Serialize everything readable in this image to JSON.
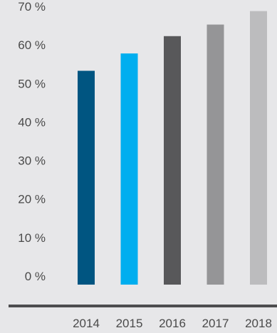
{
  "chart_data": {
    "type": "bar",
    "title": "",
    "xlabel": "",
    "ylabel": "",
    "categories": [
      "2014",
      "2015",
      "2016",
      "2017",
      "2018"
    ],
    "values": [
      55.5,
      60,
      64.5,
      67.5,
      71
    ],
    "colors": [
      "#005581",
      "#00aeef",
      "#58585a",
      "#959597",
      "#bcbcbe"
    ],
    "ylim": [
      0,
      70
    ],
    "y_ticks": [
      0,
      10,
      20,
      30,
      40,
      50,
      60,
      70
    ],
    "y_tick_labels": [
      "0 %",
      "10 %",
      "20 %",
      "30 %",
      "40 %",
      "50 %",
      "60 %",
      "70 %"
    ],
    "grid": false,
    "baseline_color": "#4d4d4f"
  }
}
